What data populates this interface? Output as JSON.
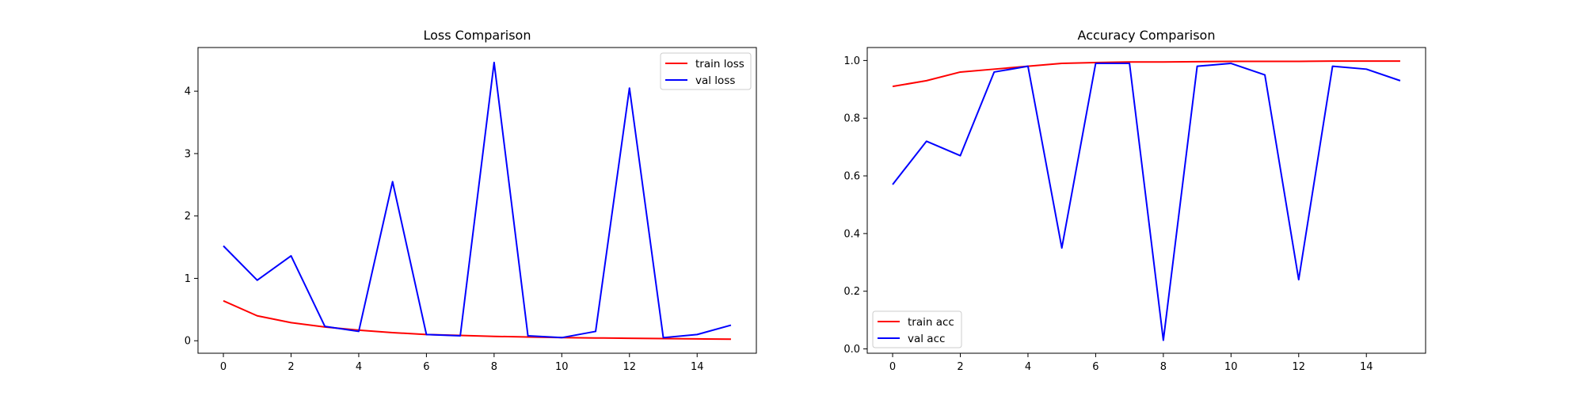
{
  "chart_data": [
    {
      "type": "line",
      "title": "Loss Comparison",
      "xlabel": "",
      "ylabel": "",
      "x": [
        0,
        1,
        2,
        3,
        4,
        5,
        6,
        7,
        8,
        9,
        10,
        11,
        12,
        13,
        14,
        15
      ],
      "xlim": [
        -0.75,
        15.75
      ],
      "ylim": [
        -0.2,
        4.7
      ],
      "xticks": [
        0,
        2,
        4,
        6,
        8,
        10,
        12,
        14
      ],
      "yticks": [
        0,
        1,
        2,
        3,
        4
      ],
      "grid": false,
      "legend_position": "top-right",
      "series": [
        {
          "name": "train loss",
          "color": "#ff0000",
          "values": [
            0.64,
            0.4,
            0.29,
            0.22,
            0.17,
            0.13,
            0.1,
            0.085,
            0.07,
            0.06,
            0.05,
            0.045,
            0.04,
            0.035,
            0.03,
            0.025
          ]
        },
        {
          "name": "val loss",
          "color": "#0000ff",
          "values": [
            1.52,
            0.97,
            1.36,
            0.23,
            0.15,
            2.55,
            0.1,
            0.08,
            4.46,
            0.08,
            0.05,
            0.15,
            4.05,
            0.05,
            0.1,
            0.25
          ]
        }
      ]
    },
    {
      "type": "line",
      "title": "Accuracy Comparison",
      "xlabel": "",
      "ylabel": "",
      "x": [
        0,
        1,
        2,
        3,
        4,
        5,
        6,
        7,
        8,
        9,
        10,
        11,
        12,
        13,
        14,
        15
      ],
      "xlim": [
        -0.75,
        15.75
      ],
      "ylim": [
        -0.015,
        1.045
      ],
      "xticks": [
        0,
        2,
        4,
        6,
        8,
        10,
        12,
        14
      ],
      "yticks": [
        0.0,
        0.2,
        0.4,
        0.6,
        0.8,
        1.0
      ],
      "grid": false,
      "legend_position": "bottom-left",
      "series": [
        {
          "name": "train acc",
          "color": "#ff0000",
          "values": [
            0.91,
            0.93,
            0.96,
            0.97,
            0.98,
            0.99,
            0.993,
            0.995,
            0.995,
            0.996,
            0.997,
            0.997,
            0.997,
            0.998,
            0.998,
            0.998
          ]
        },
        {
          "name": "val acc",
          "color": "#0000ff",
          "values": [
            0.57,
            0.72,
            0.67,
            0.96,
            0.98,
            0.35,
            0.99,
            0.99,
            0.03,
            0.98,
            0.99,
            0.95,
            0.24,
            0.98,
            0.97,
            0.93
          ]
        }
      ]
    }
  ]
}
